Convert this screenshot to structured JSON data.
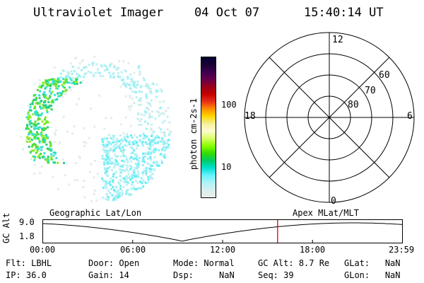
{
  "header": {
    "instrument": "Ultraviolet Imager",
    "date": "04 Oct 07",
    "time": "15:40:14 UT"
  },
  "colorbar": {
    "unit_label": "photon cm-2s-1",
    "ticks": [
      "100",
      "10"
    ],
    "colors": [
      "#000033",
      "#1a0033",
      "#3d004d",
      "#66004d",
      "#99001a",
      "#c40000",
      "#e8301a",
      "#ff8c00",
      "#ffd800",
      "#f4f09a",
      "#fffbd0",
      "#d7ff66",
      "#88ff00",
      "#33dd00",
      "#00cc66",
      "#00e0cc",
      "#66f2ff",
      "#aef3f8",
      "#d7f0ef",
      "#e9eceb"
    ]
  },
  "polar_plot": {
    "mlt_labels": [
      "12",
      "18",
      "6",
      "0"
    ],
    "mlat_labels": [
      "60",
      "70",
      "80"
    ]
  },
  "timeline": {
    "y_axis_label": "GC Alt",
    "y_ticks": [
      "9.0",
      "1.8"
    ],
    "left_title": "Geographic Lat/Lon",
    "right_title": "Apex  MLat/MLT",
    "x_ticks": [
      "00:00",
      "06:00",
      "12:00",
      "18:00",
      "23:59"
    ],
    "current_time_hours": 15.67
  },
  "status": {
    "row1": [
      {
        "key": "Flt:",
        "value": "LBHL"
      },
      {
        "key": "Door:",
        "value": "Open"
      },
      {
        "key": "Mode:",
        "value": "Normal"
      },
      {
        "key": "GC Alt:",
        "value": "8.7 Re"
      },
      {
        "key": "GLat:",
        "value": "NaN"
      }
    ],
    "row2": [
      {
        "key": "IP:",
        "value": "36.0"
      },
      {
        "key": "Gain:",
        "value": "14"
      },
      {
        "key": "Dsp:",
        "value": "NaN"
      },
      {
        "key": "Seq:",
        "value": "39"
      },
      {
        "key": "GLon:",
        "value": "NaN"
      }
    ]
  }
}
